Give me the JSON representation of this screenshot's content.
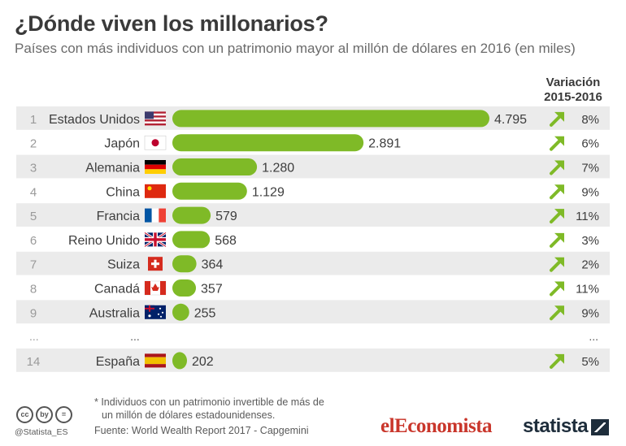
{
  "title": "¿Dónde viven los millonarios?",
  "subtitle": "Países con más individuos con un patrimonio mayor al millón de dólares en 2016 (en miles)",
  "variation_header_line1": "Variación",
  "variation_header_line2": "2015-2016",
  "ellipsis": "...",
  "chart_data": {
    "type": "bar",
    "orientation": "horizontal",
    "title": "¿Dónde viven los millonarios?",
    "subtitle": "Países con más individuos con un patrimonio mayor al millón de dólares en 2016 (en miles)",
    "rows": [
      {
        "rank": "1",
        "country": "Estados Unidos",
        "flag": "flag-usa",
        "value": 4795,
        "label": "4.795",
        "change": "8%"
      },
      {
        "rank": "2",
        "country": "Japón",
        "flag": "flag-japan",
        "value": 2891,
        "label": "2.891",
        "change": "6%"
      },
      {
        "rank": "3",
        "country": "Alemania",
        "flag": "flag-germany",
        "value": 1280,
        "label": "1.280",
        "change": "7%"
      },
      {
        "rank": "4",
        "country": "China",
        "flag": "flag-china",
        "value": 1129,
        "label": "1.129",
        "change": "9%"
      },
      {
        "rank": "5",
        "country": "Francia",
        "flag": "flag-france",
        "value": 579,
        "label": "579",
        "change": "11%"
      },
      {
        "rank": "6",
        "country": "Reino Unido",
        "flag": "flag-uk",
        "value": 568,
        "label": "568",
        "change": "3%"
      },
      {
        "rank": "7",
        "country": "Suiza",
        "flag": "flag-switzerland",
        "value": 364,
        "label": "364",
        "change": "2%"
      },
      {
        "rank": "8",
        "country": "Canadá",
        "flag": "flag-canada",
        "value": 357,
        "label": "357",
        "change": "11%"
      },
      {
        "rank": "9",
        "country": "Australia",
        "flag": "flag-australia",
        "value": 255,
        "label": "255",
        "change": "9%"
      },
      {
        "rank": "14",
        "country": "España",
        "flag": "flag-spain",
        "value": 202,
        "label": "202",
        "change": "5%",
        "gap_before": true
      }
    ],
    "xlim": [
      0,
      4795
    ],
    "grid": false,
    "colors": {
      "bar": "#7fba27",
      "arrow": "#7fba27",
      "stripe": "#ebebeb"
    }
  },
  "footnote_line1": "* Individuos con un patrimonio invertible de más de",
  "footnote_line2": "un millón de dólares estadounidenses.",
  "source": "Fuente: World Wealth Report 2017 - Capgemini",
  "handle": "@Statista_ES",
  "cc_icons": [
    "cc",
    "by",
    "="
  ],
  "brand_left": "elEconomista",
  "brand_right": "statista"
}
